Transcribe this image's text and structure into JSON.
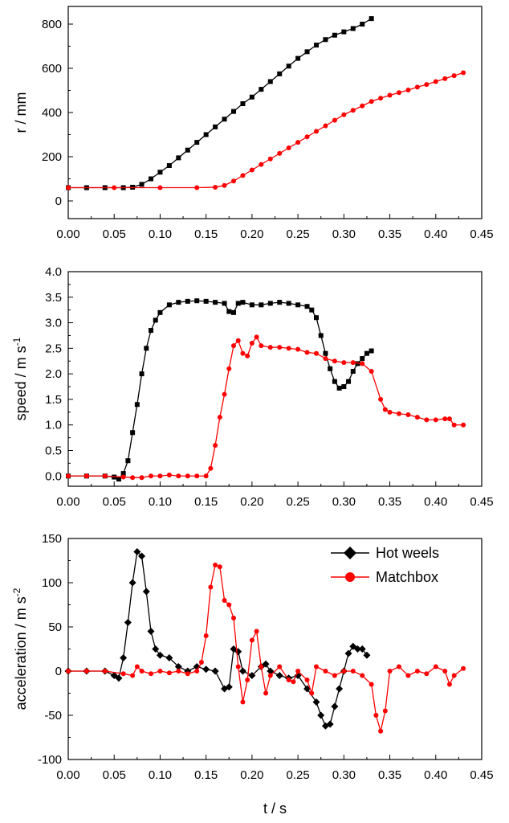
{
  "colors": {
    "series_black": "#000000",
    "series_red": "#ff0000",
    "axis": "#000000"
  },
  "chart_data": [
    {
      "type": "scatter",
      "ylabel": "r / mm",
      "xlim": [
        0,
        0.45
      ],
      "ylim": [
        -80,
        880
      ],
      "xticks": [
        "0.00",
        "0.05",
        "0.10",
        "0.15",
        "0.20",
        "0.25",
        "0.30",
        "0.35",
        "0.40",
        "0.45"
      ],
      "yticks": [
        "0",
        "200",
        "400",
        "600",
        "800"
      ],
      "series": [
        {
          "color": "#000000",
          "marker": "square",
          "points": [
            [
              0,
              60
            ],
            [
              0.02,
              60
            ],
            [
              0.04,
              60
            ],
            [
              0.06,
              60
            ],
            [
              0.07,
              62
            ],
            [
              0.08,
              75
            ],
            [
              0.09,
              100
            ],
            [
              0.1,
              130
            ],
            [
              0.11,
              160
            ],
            [
              0.12,
              195
            ],
            [
              0.13,
              230
            ],
            [
              0.14,
              265
            ],
            [
              0.15,
              300
            ],
            [
              0.16,
              335
            ],
            [
              0.17,
              370
            ],
            [
              0.18,
              405
            ],
            [
              0.19,
              440
            ],
            [
              0.2,
              470
            ],
            [
              0.21,
              505
            ],
            [
              0.22,
              540
            ],
            [
              0.23,
              575
            ],
            [
              0.24,
              610
            ],
            [
              0.25,
              645
            ],
            [
              0.26,
              675
            ],
            [
              0.27,
              705
            ],
            [
              0.28,
              730
            ],
            [
              0.29,
              750
            ],
            [
              0.3,
              765
            ],
            [
              0.31,
              780
            ],
            [
              0.32,
              800
            ],
            [
              0.33,
              825
            ]
          ]
        },
        {
          "color": "#ff0000",
          "marker": "circle",
          "points": [
            [
              0,
              60
            ],
            [
              0.05,
              60
            ],
            [
              0.1,
              60
            ],
            [
              0.14,
              60
            ],
            [
              0.16,
              62
            ],
            [
              0.17,
              70
            ],
            [
              0.18,
              90
            ],
            [
              0.19,
              115
            ],
            [
              0.2,
              140
            ],
            [
              0.21,
              165
            ],
            [
              0.22,
              190
            ],
            [
              0.23,
              215
            ],
            [
              0.24,
              240
            ],
            [
              0.25,
              265
            ],
            [
              0.26,
              290
            ],
            [
              0.27,
              315
            ],
            [
              0.28,
              340
            ],
            [
              0.29,
              365
            ],
            [
              0.3,
              390
            ],
            [
              0.31,
              410
            ],
            [
              0.32,
              430
            ],
            [
              0.33,
              450
            ],
            [
              0.34,
              465
            ],
            [
              0.35,
              478
            ],
            [
              0.36,
              490
            ],
            [
              0.37,
              502
            ],
            [
              0.38,
              515
            ],
            [
              0.39,
              527
            ],
            [
              0.4,
              540
            ],
            [
              0.41,
              553
            ],
            [
              0.42,
              567
            ],
            [
              0.43,
              580
            ]
          ]
        }
      ]
    },
    {
      "type": "line",
      "ylabel_main": "speed / m s",
      "ylabel_sup": "-1",
      "xlim": [
        0,
        0.45
      ],
      "ylim": [
        -0.2,
        4.0
      ],
      "xticks": [
        "0.00",
        "0.05",
        "0.10",
        "0.15",
        "0.20",
        "0.25",
        "0.30",
        "0.35",
        "0.40",
        "0.45"
      ],
      "yticks": [
        "0.0",
        "0.5",
        "1.0",
        "1.5",
        "2.0",
        "2.5",
        "3.0",
        "3.5",
        "4.0"
      ],
      "series": [
        {
          "color": "#000000",
          "marker": "square",
          "points": [
            [
              0,
              0
            ],
            [
              0.02,
              0
            ],
            [
              0.04,
              0
            ],
            [
              0.05,
              -0.02
            ],
            [
              0.055,
              -0.06
            ],
            [
              0.06,
              0.05
            ],
            [
              0.065,
              0.3
            ],
            [
              0.07,
              0.85
            ],
            [
              0.075,
              1.4
            ],
            [
              0.08,
              2.0
            ],
            [
              0.085,
              2.5
            ],
            [
              0.09,
              2.85
            ],
            [
              0.095,
              3.05
            ],
            [
              0.1,
              3.2
            ],
            [
              0.11,
              3.35
            ],
            [
              0.12,
              3.4
            ],
            [
              0.13,
              3.42
            ],
            [
              0.14,
              3.43
            ],
            [
              0.15,
              3.42
            ],
            [
              0.16,
              3.4
            ],
            [
              0.17,
              3.38
            ],
            [
              0.175,
              3.22
            ],
            [
              0.18,
              3.2
            ],
            [
              0.185,
              3.38
            ],
            [
              0.19,
              3.4
            ],
            [
              0.2,
              3.35
            ],
            [
              0.21,
              3.35
            ],
            [
              0.22,
              3.38
            ],
            [
              0.23,
              3.4
            ],
            [
              0.24,
              3.38
            ],
            [
              0.25,
              3.35
            ],
            [
              0.26,
              3.32
            ],
            [
              0.265,
              3.25
            ],
            [
              0.27,
              3.1
            ],
            [
              0.275,
              2.75
            ],
            [
              0.28,
              2.4
            ],
            [
              0.285,
              2.1
            ],
            [
              0.29,
              1.85
            ],
            [
              0.295,
              1.72
            ],
            [
              0.3,
              1.75
            ],
            [
              0.305,
              1.85
            ],
            [
              0.31,
              2.05
            ],
            [
              0.315,
              2.2
            ],
            [
              0.32,
              2.3
            ],
            [
              0.325,
              2.4
            ],
            [
              0.33,
              2.45
            ]
          ]
        },
        {
          "color": "#ff0000",
          "marker": "circle",
          "points": [
            [
              0,
              0
            ],
            [
              0.02,
              0
            ],
            [
              0.04,
              0
            ],
            [
              0.06,
              -0.02
            ],
            [
              0.07,
              -0.03
            ],
            [
              0.08,
              -0.03
            ],
            [
              0.09,
              0
            ],
            [
              0.1,
              0
            ],
            [
              0.11,
              0.02
            ],
            [
              0.12,
              0
            ],
            [
              0.13,
              0
            ],
            [
              0.14,
              0
            ],
            [
              0.15,
              0
            ],
            [
              0.155,
              0.15
            ],
            [
              0.16,
              0.6
            ],
            [
              0.165,
              1.15
            ],
            [
              0.17,
              1.6
            ],
            [
              0.175,
              2.1
            ],
            [
              0.18,
              2.55
            ],
            [
              0.185,
              2.65
            ],
            [
              0.19,
              2.4
            ],
            [
              0.195,
              2.35
            ],
            [
              0.2,
              2.6
            ],
            [
              0.205,
              2.72
            ],
            [
              0.21,
              2.55
            ],
            [
              0.22,
              2.52
            ],
            [
              0.23,
              2.52
            ],
            [
              0.24,
              2.5
            ],
            [
              0.25,
              2.48
            ],
            [
              0.26,
              2.42
            ],
            [
              0.27,
              2.4
            ],
            [
              0.28,
              2.3
            ],
            [
              0.29,
              2.25
            ],
            [
              0.3,
              2.22
            ],
            [
              0.31,
              2.22
            ],
            [
              0.32,
              2.2
            ],
            [
              0.33,
              2.05
            ],
            [
              0.34,
              1.5
            ],
            [
              0.345,
              1.3
            ],
            [
              0.35,
              1.25
            ],
            [
              0.36,
              1.22
            ],
            [
              0.37,
              1.2
            ],
            [
              0.38,
              1.15
            ],
            [
              0.39,
              1.1
            ],
            [
              0.4,
              1.1
            ],
            [
              0.41,
              1.12
            ],
            [
              0.415,
              1.12
            ],
            [
              0.42,
              1.0
            ],
            [
              0.43,
              1.0
            ]
          ]
        }
      ]
    },
    {
      "type": "line",
      "ylabel_main": "acceleration / m s",
      "ylabel_sup": "-2",
      "xlabel": "t / s",
      "xlim": [
        0,
        0.45
      ],
      "ylim": [
        -100,
        150
      ],
      "xticks": [
        "0.00",
        "0.05",
        "0.10",
        "0.15",
        "0.20",
        "0.25",
        "0.30",
        "0.35",
        "0.40",
        "0.45"
      ],
      "yticks": [
        "-100",
        "-50",
        "0",
        "50",
        "100",
        "150"
      ],
      "legend_position": "top-right",
      "series": [
        {
          "name": "Hot weels",
          "color": "#000000",
          "marker": "diamond",
          "points": [
            [
              0,
              0
            ],
            [
              0.02,
              0
            ],
            [
              0.04,
              0
            ],
            [
              0.05,
              -5
            ],
            [
              0.055,
              -8
            ],
            [
              0.06,
              15
            ],
            [
              0.065,
              55
            ],
            [
              0.07,
              100
            ],
            [
              0.075,
              135
            ],
            [
              0.08,
              130
            ],
            [
              0.085,
              90
            ],
            [
              0.09,
              45
            ],
            [
              0.095,
              25
            ],
            [
              0.1,
              18
            ],
            [
              0.11,
              15
            ],
            [
              0.12,
              5
            ],
            [
              0.13,
              0
            ],
            [
              0.14,
              5
            ],
            [
              0.15,
              2
            ],
            [
              0.16,
              0
            ],
            [
              0.17,
              -20
            ],
            [
              0.175,
              -18
            ],
            [
              0.18,
              25
            ],
            [
              0.185,
              22
            ],
            [
              0.19,
              0
            ],
            [
              0.2,
              -5
            ],
            [
              0.21,
              5
            ],
            [
              0.215,
              8
            ],
            [
              0.22,
              0
            ],
            [
              0.23,
              -5
            ],
            [
              0.24,
              -8
            ],
            [
              0.25,
              -5
            ],
            [
              0.26,
              -20
            ],
            [
              0.27,
              -35
            ],
            [
              0.275,
              -50
            ],
            [
              0.28,
              -62
            ],
            [
              0.285,
              -60
            ],
            [
              0.29,
              -40
            ],
            [
              0.295,
              -20
            ],
            [
              0.3,
              0
            ],
            [
              0.305,
              20
            ],
            [
              0.31,
              28
            ],
            [
              0.315,
              25
            ],
            [
              0.32,
              25
            ],
            [
              0.325,
              18
            ]
          ]
        },
        {
          "name": "Matchbox",
          "color": "#ff0000",
          "marker": "circle",
          "points": [
            [
              0,
              0
            ],
            [
              0.02,
              0
            ],
            [
              0.04,
              0
            ],
            [
              0.06,
              -3
            ],
            [
              0.07,
              -5
            ],
            [
              0.075,
              5
            ],
            [
              0.08,
              0
            ],
            [
              0.09,
              -3
            ],
            [
              0.1,
              0
            ],
            [
              0.11,
              -2
            ],
            [
              0.12,
              0
            ],
            [
              0.13,
              -3
            ],
            [
              0.14,
              0
            ],
            [
              0.145,
              10
            ],
            [
              0.15,
              40
            ],
            [
              0.155,
              95
            ],
            [
              0.16,
              120
            ],
            [
              0.165,
              118
            ],
            [
              0.17,
              80
            ],
            [
              0.175,
              75
            ],
            [
              0.18,
              60
            ],
            [
              0.185,
              5
            ],
            [
              0.19,
              -35
            ],
            [
              0.195,
              -10
            ],
            [
              0.2,
              35
            ],
            [
              0.205,
              45
            ],
            [
              0.21,
              5
            ],
            [
              0.215,
              -25
            ],
            [
              0.22,
              -5
            ],
            [
              0.23,
              5
            ],
            [
              0.24,
              -10
            ],
            [
              0.245,
              -12
            ],
            [
              0.25,
              0
            ],
            [
              0.26,
              -10
            ],
            [
              0.265,
              -25
            ],
            [
              0.27,
              5
            ],
            [
              0.28,
              0
            ],
            [
              0.29,
              -5
            ],
            [
              0.3,
              0
            ],
            [
              0.31,
              0
            ],
            [
              0.32,
              -5
            ],
            [
              0.33,
              -15
            ],
            [
              0.335,
              -50
            ],
            [
              0.34,
              -68
            ],
            [
              0.345,
              -45
            ],
            [
              0.35,
              0
            ],
            [
              0.36,
              5
            ],
            [
              0.37,
              -5
            ],
            [
              0.38,
              0
            ],
            [
              0.39,
              -3
            ],
            [
              0.4,
              5
            ],
            [
              0.41,
              0
            ],
            [
              0.415,
              -15
            ],
            [
              0.42,
              -5
            ],
            [
              0.43,
              3
            ]
          ]
        }
      ]
    }
  ]
}
